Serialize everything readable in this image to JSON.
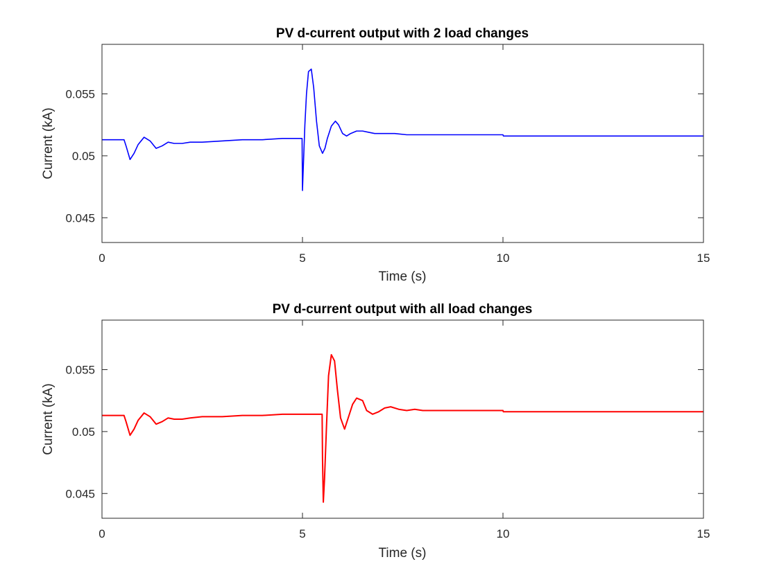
{
  "chart_data": [
    {
      "type": "line",
      "title": "PV d-current output with 2 load changes",
      "xlabel": "Time (s)",
      "ylabel": "Current (kA)",
      "xlim": [
        0,
        15
      ],
      "ylim": [
        0.043,
        0.059
      ],
      "xticks": [
        0,
        5,
        10,
        15
      ],
      "xtick_labels": [
        "0",
        "5",
        "10",
        "15"
      ],
      "yticks": [
        0.045,
        0.05,
        0.055
      ],
      "ytick_labels": [
        "0.045",
        "0.05",
        "0.055"
      ],
      "grid": false,
      "series": [
        {
          "color": "#0000ff",
          "x": [
            0,
            0.55,
            0.6,
            0.7,
            0.8,
            0.9,
            1.05,
            1.2,
            1.35,
            1.5,
            1.65,
            1.8,
            2.0,
            2.2,
            2.5,
            3.0,
            3.5,
            4.0,
            4.5,
            4.99,
            5.0,
            5.02,
            5.06,
            5.1,
            5.15,
            5.22,
            5.28,
            5.35,
            5.42,
            5.5,
            5.56,
            5.62,
            5.72,
            5.82,
            5.9,
            6.0,
            6.1,
            6.2,
            6.35,
            6.5,
            6.65,
            6.8,
            7.0,
            7.3,
            7.6,
            8.0,
            9.0,
            10.0,
            10.01,
            11.0,
            12.0,
            13.0,
            14.0,
            15.0
          ],
          "y": [
            0.0513,
            0.0513,
            0.0508,
            0.0497,
            0.0502,
            0.0509,
            0.0515,
            0.0512,
            0.0506,
            0.0508,
            0.0511,
            0.051,
            0.051,
            0.0511,
            0.0511,
            0.0512,
            0.0513,
            0.0513,
            0.0514,
            0.0514,
            0.0472,
            0.049,
            0.0525,
            0.055,
            0.0568,
            0.057,
            0.0555,
            0.0528,
            0.0508,
            0.0502,
            0.0506,
            0.0514,
            0.0524,
            0.0528,
            0.0525,
            0.0518,
            0.0516,
            0.0518,
            0.052,
            0.052,
            0.0519,
            0.0518,
            0.0518,
            0.0518,
            0.0517,
            0.0517,
            0.0517,
            0.0517,
            0.0516,
            0.0516,
            0.0516,
            0.0516,
            0.0516,
            0.0516
          ]
        }
      ]
    },
    {
      "type": "line",
      "title": "PV d-current output with all load changes",
      "xlabel": "Time (s)",
      "ylabel": "Current (kA)",
      "xlim": [
        0,
        15
      ],
      "ylim": [
        0.043,
        0.059
      ],
      "xticks": [
        0,
        5,
        10,
        15
      ],
      "xtick_labels": [
        "0",
        "5",
        "10",
        "15"
      ],
      "yticks": [
        0.045,
        0.05,
        0.055
      ],
      "ytick_labels": [
        "0.045",
        "0.05",
        "0.055"
      ],
      "grid": false,
      "series": [
        {
          "color": "#ff0000",
          "x": [
            0,
            0.55,
            0.6,
            0.7,
            0.8,
            0.9,
            1.05,
            1.2,
            1.35,
            1.5,
            1.65,
            1.8,
            2.0,
            2.2,
            2.5,
            3.0,
            3.5,
            4.0,
            4.5,
            5.0,
            5.49,
            5.5,
            5.52,
            5.55,
            5.6,
            5.65,
            5.72,
            5.8,
            5.87,
            5.95,
            6.05,
            6.15,
            6.25,
            6.35,
            6.5,
            6.6,
            6.75,
            6.9,
            7.05,
            7.2,
            7.4,
            7.6,
            7.8,
            8.0,
            9.0,
            10.0,
            10.01,
            11.0,
            12.0,
            13.0,
            14.0,
            15.0
          ],
          "y": [
            0.0513,
            0.0513,
            0.0508,
            0.0497,
            0.0502,
            0.0509,
            0.0515,
            0.0512,
            0.0506,
            0.0508,
            0.0511,
            0.051,
            0.051,
            0.0511,
            0.0512,
            0.0512,
            0.0513,
            0.0513,
            0.0514,
            0.0514,
            0.0514,
            0.0478,
            0.0443,
            0.0462,
            0.0505,
            0.0545,
            0.0562,
            0.0557,
            0.0534,
            0.0511,
            0.0502,
            0.0512,
            0.0522,
            0.0527,
            0.0525,
            0.0517,
            0.0514,
            0.0516,
            0.0519,
            0.052,
            0.0518,
            0.0517,
            0.0518,
            0.0517,
            0.0517,
            0.0517,
            0.0516,
            0.0516,
            0.0516,
            0.0516,
            0.0516,
            0.0516
          ]
        }
      ]
    }
  ]
}
